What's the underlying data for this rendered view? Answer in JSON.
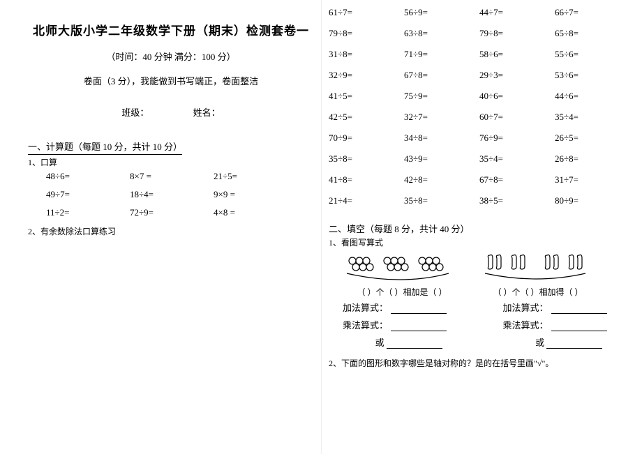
{
  "left": {
    "title": "北师大版小学二年级数学下册（期末）检测套卷一",
    "subtitle": "（时间：40 分钟  满分：100 分）",
    "subtitle2": "卷面（3 分），我能做到书写端正，卷面整洁",
    "class_label": "班级：",
    "name_label": "姓名：",
    "section1": "一、计算题（每题  10 分，共计  10 分）",
    "sub1": "1、口算",
    "q1_rows": [
      [
        "48÷6=",
        "8×7 =",
        "21÷5="
      ],
      [
        "49÷7=",
        "18÷4=",
        "9×9 ="
      ],
      [
        "11÷2=",
        "72÷9=",
        "4×8 ="
      ]
    ],
    "sub2": "2、有余数除法口算练习"
  },
  "right": {
    "q2_rows": [
      [
        "61÷7=",
        "56÷9=",
        "44÷7=",
        "66÷7="
      ],
      [
        "79÷8=",
        "63÷8=",
        "79÷8=",
        "65÷8="
      ],
      [
        "31÷8=",
        "71÷9=",
        "58÷6=",
        "55÷6="
      ],
      [
        "32÷9=",
        "67÷8=",
        "29÷3=",
        "53÷6="
      ],
      [
        "41÷5=",
        "75÷9=",
        "40÷6=",
        "44÷6="
      ],
      [
        "42÷5=",
        "32÷7=",
        "60÷7=",
        "35÷4="
      ],
      [
        "70÷9=",
        "34÷8=",
        "76÷9=",
        "26÷5="
      ],
      [
        "35÷8=",
        "43÷9=",
        "35÷4=",
        "26÷8="
      ],
      [
        "41÷8=",
        "42÷8=",
        "67÷8=",
        "31÷7="
      ],
      [
        "21÷4=",
        "35÷8=",
        "38÷5=",
        "80÷9="
      ]
    ],
    "section2": "二、填空（每题  8 分，共计  40 分）",
    "sub1": "1、看图写算式",
    "caption_left": "（  ）个（  ）相加是（  ）",
    "caption_right": "（  ）个（  ）相加得（  ）",
    "add_label": "加法算式：",
    "mul_label": "乘法算式：",
    "or_label": "或",
    "sub2": "2、下面的图形和数字哪些是轴对称的？是的在括号里画\"√\"。"
  }
}
